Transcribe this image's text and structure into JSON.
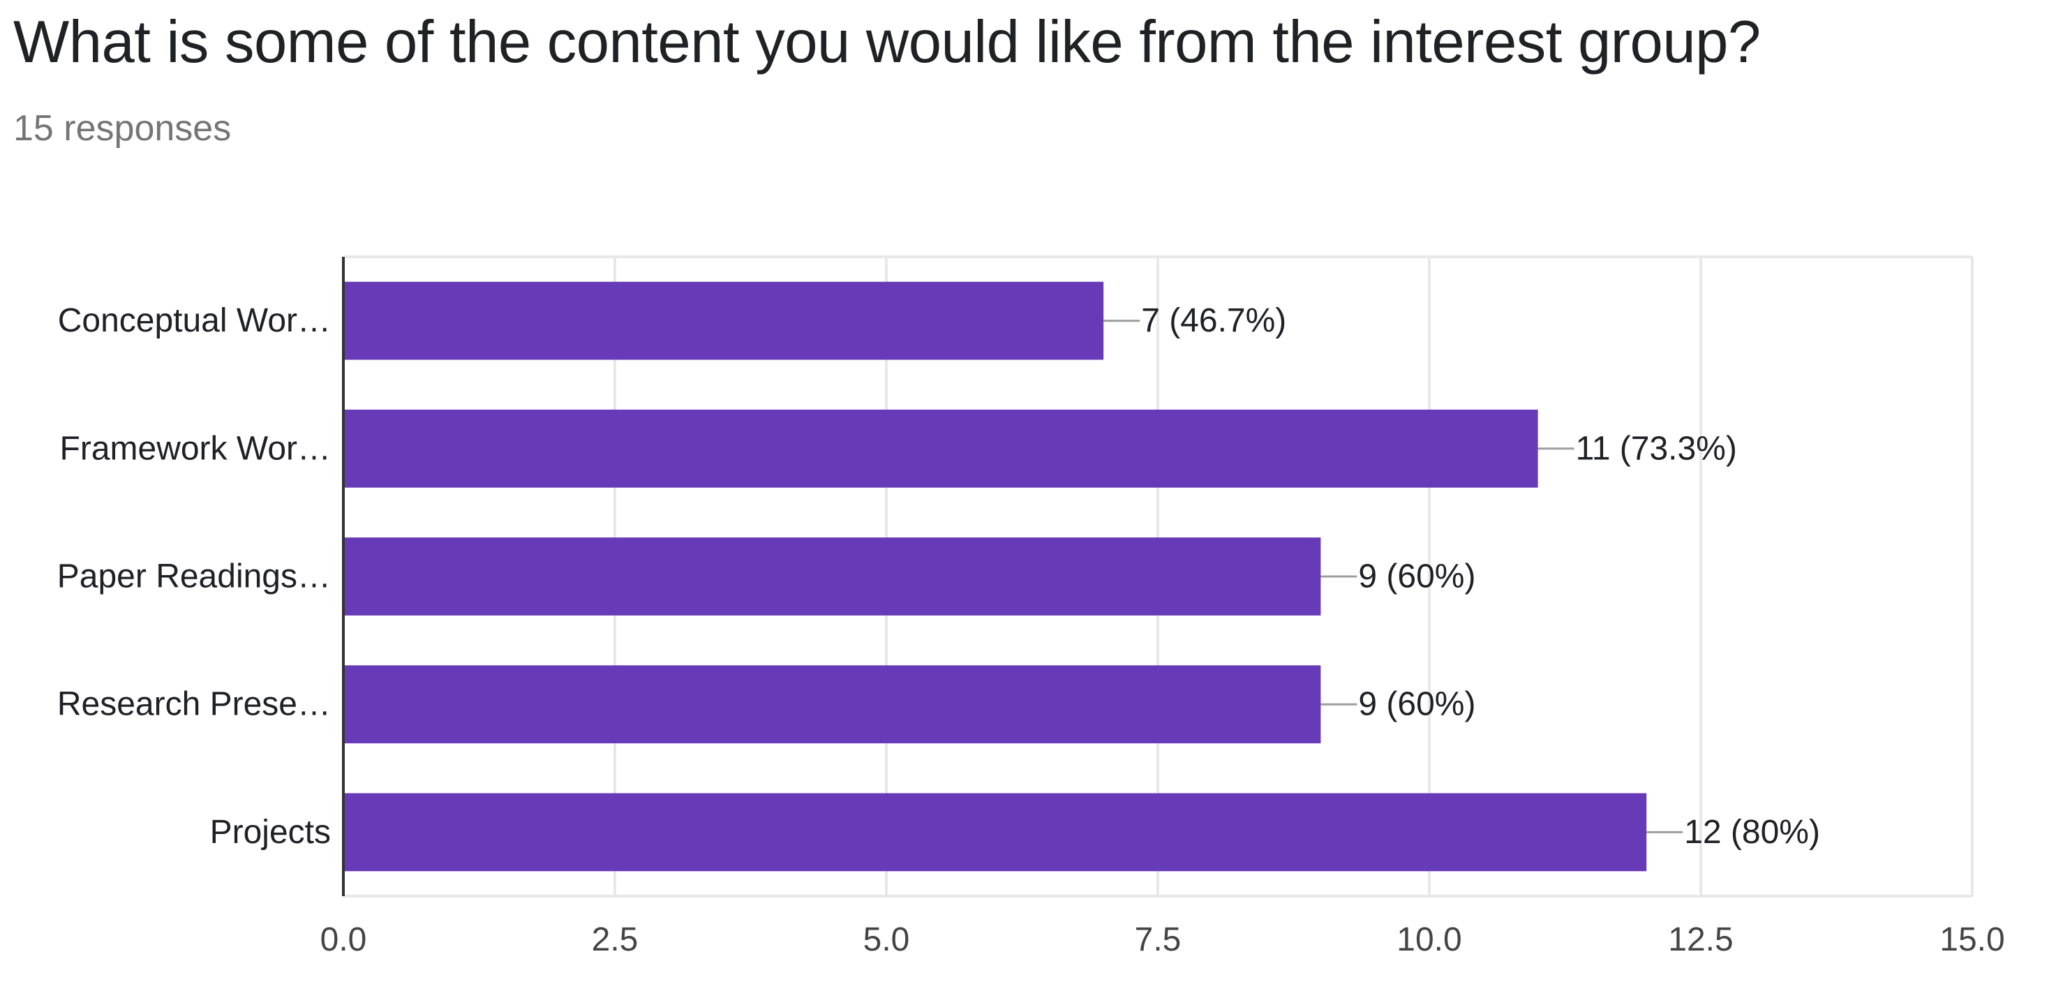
{
  "chart_data": {
    "type": "bar",
    "orientation": "horizontal",
    "title": "What is some of the content you would like from the interest group?",
    "subtitle": "15 responses",
    "categories": [
      "Conceptual Wor…",
      "Framework Wor…",
      "Paper Readings…",
      "Research Prese…",
      "Projects"
    ],
    "values": [
      7,
      11,
      9,
      9,
      12
    ],
    "data_labels": [
      "7 (46.7%)",
      "11 (73.3%)",
      "9 (60%)",
      "9 (60%)",
      "12 (80%)"
    ],
    "xlim": [
      0,
      15
    ],
    "xticks": [
      0,
      2.5,
      5,
      7.5,
      10,
      12.5,
      15
    ],
    "xtick_labels": [
      "0.0",
      "2.5",
      "5.0",
      "7.5",
      "10.0",
      "12.5",
      "15.0"
    ],
    "grid": true,
    "legend": "none",
    "bar_color": "#673ab7"
  }
}
